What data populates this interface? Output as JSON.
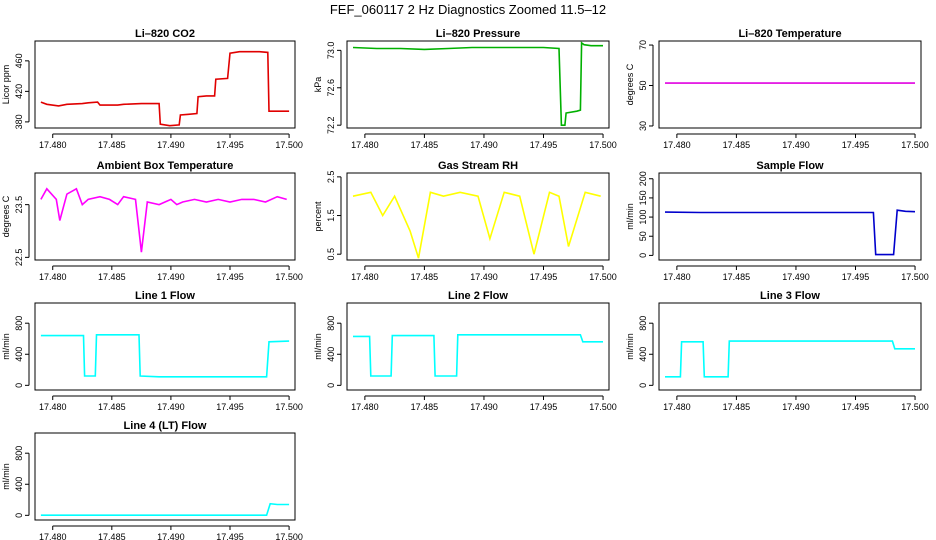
{
  "figure_title": "FEF_060117  2 Hz Diagnostics Zoomed 11.5–12",
  "chart_data": [
    {
      "type": "line",
      "title": "Li–820 CO2",
      "ylabel": "Licor ppm",
      "color": "#e00000",
      "xlim": [
        17.4785,
        17.5005
      ],
      "ylim": [
        372,
        486
      ],
      "xticks": [
        17.48,
        17.485,
        17.49,
        17.495,
        17.5
      ],
      "xtick_labels": [
        "17.480",
        "17.485",
        "17.490",
        "17.495",
        "17.500"
      ],
      "yticks": [
        380,
        420,
        460
      ],
      "ytick_labels": [
        "380",
        "420",
        "460"
      ],
      "x": [
        17.479,
        17.4795,
        17.4805,
        17.4812,
        17.4825,
        17.483,
        17.4838,
        17.484,
        17.4855,
        17.486,
        17.4875,
        17.489,
        17.4891,
        17.4899,
        17.4907,
        17.4908,
        17.4915,
        17.4922,
        17.4923,
        17.493,
        17.4937,
        17.4938,
        17.4948,
        17.495,
        17.4958,
        17.4975,
        17.4982,
        17.4983,
        17.499,
        17.5
      ],
      "y": [
        406,
        403,
        401,
        403,
        404,
        405,
        406,
        402,
        402,
        403,
        404,
        404,
        377,
        375,
        376,
        389,
        390,
        391,
        413,
        414,
        414,
        436,
        437,
        470,
        472,
        472,
        471,
        394,
        394,
        394
      ]
    },
    {
      "type": "line",
      "title": "Li–820 Pressure",
      "ylabel": "kPa",
      "color": "#00b000",
      "xlim": [
        17.4785,
        17.5005
      ],
      "ylim": [
        72.17,
        73.1
      ],
      "xticks": [
        17.48,
        17.485,
        17.49,
        17.495,
        17.5
      ],
      "xtick_labels": [
        "17.480",
        "17.485",
        "17.490",
        "17.495",
        "17.500"
      ],
      "yticks": [
        72.2,
        72.6,
        73.0
      ],
      "ytick_labels": [
        "72.2",
        "72.6",
        "73.0"
      ],
      "x": [
        17.479,
        17.481,
        17.483,
        17.485,
        17.487,
        17.489,
        17.491,
        17.493,
        17.495,
        17.4963,
        17.4965,
        17.4968,
        17.4969,
        17.4978,
        17.4981,
        17.4982,
        17.4984,
        17.499,
        17.5
      ],
      "y": [
        73.03,
        73.02,
        73.02,
        73.01,
        73.02,
        73.03,
        73.03,
        73.03,
        73.03,
        73.02,
        72.2,
        72.2,
        72.33,
        72.35,
        72.36,
        73.08,
        73.06,
        73.05,
        73.05
      ]
    },
    {
      "type": "line",
      "title": "Li–820 Temperature",
      "ylabel": "degrees C",
      "color": "#e000e0",
      "xlim": [
        17.4785,
        17.5005
      ],
      "ylim": [
        29,
        72
      ],
      "xticks": [
        17.48,
        17.485,
        17.49,
        17.495,
        17.5
      ],
      "xtick_labels": [
        "17.480",
        "17.485",
        "17.490",
        "17.495",
        "17.500"
      ],
      "yticks": [
        30,
        50,
        70
      ],
      "ytick_labels": [
        "30",
        "50",
        "70"
      ],
      "x": [
        17.479,
        17.5
      ],
      "y": [
        51.2,
        51.2
      ]
    },
    {
      "type": "line",
      "title": "Ambient Box Temperature",
      "ylabel": "degrees C",
      "color": "#ff00ff",
      "xlim": [
        17.4785,
        17.5005
      ],
      "ylim": [
        22.45,
        24.1
      ],
      "xticks": [
        17.48,
        17.485,
        17.49,
        17.495,
        17.5
      ],
      "xtick_labels": [
        "17.480",
        "17.485",
        "17.490",
        "17.495",
        "17.500"
      ],
      "yticks": [
        22.5,
        23.5
      ],
      "ytick_labels": [
        "22.5",
        "23.5"
      ],
      "x": [
        17.479,
        17.4795,
        17.4803,
        17.4806,
        17.4812,
        17.482,
        17.4825,
        17.483,
        17.484,
        17.4848,
        17.4855,
        17.486,
        17.487,
        17.4875,
        17.488,
        17.489,
        17.4895,
        17.49,
        17.4905,
        17.491,
        17.492,
        17.493,
        17.494,
        17.495,
        17.496,
        17.497,
        17.498,
        17.499,
        17.4998
      ],
      "y": [
        23.6,
        23.8,
        23.6,
        23.2,
        23.7,
        23.8,
        23.5,
        23.6,
        23.65,
        23.6,
        23.5,
        23.65,
        23.6,
        22.6,
        23.55,
        23.5,
        23.55,
        23.6,
        23.5,
        23.55,
        23.6,
        23.55,
        23.6,
        23.55,
        23.6,
        23.6,
        23.55,
        23.65,
        23.6
      ]
    },
    {
      "type": "line",
      "title": "Gas Stream RH",
      "ylabel": "percent",
      "color": "#ffff00",
      "xlim": [
        17.4785,
        17.5005
      ],
      "ylim": [
        0.35,
        2.6
      ],
      "xticks": [
        17.48,
        17.485,
        17.49,
        17.495,
        17.5
      ],
      "xtick_labels": [
        "17.480",
        "17.485",
        "17.490",
        "17.495",
        "17.500"
      ],
      "yticks": [
        0.5,
        1.5,
        2.5
      ],
      "ytick_labels": [
        "0.5",
        "1.5",
        "2.5"
      ],
      "x": [
        17.479,
        17.4805,
        17.4815,
        17.4825,
        17.4838,
        17.4845,
        17.4855,
        17.4866,
        17.488,
        17.4895,
        17.4905,
        17.4917,
        17.493,
        17.4942,
        17.4955,
        17.4963,
        17.4971,
        17.4985,
        17.4998
      ],
      "y": [
        2.0,
        2.1,
        1.5,
        2.0,
        1.1,
        0.4,
        2.1,
        2.0,
        2.1,
        2.0,
        0.9,
        2.1,
        2.0,
        0.5,
        2.1,
        2.0,
        0.7,
        2.1,
        2.0
      ]
    },
    {
      "type": "line",
      "title": "Sample Flow",
      "ylabel": "ml/min",
      "color": "#0000cc",
      "xlim": [
        17.4785,
        17.5005
      ],
      "ylim": [
        -12,
        215
      ],
      "xticks": [
        17.48,
        17.485,
        17.49,
        17.495,
        17.5
      ],
      "xtick_labels": [
        "17.480",
        "17.485",
        "17.490",
        "17.495",
        "17.500"
      ],
      "yticks": [
        0,
        50,
        100,
        150,
        200
      ],
      "ytick_labels": [
        "0",
        "50",
        "100",
        "150",
        "200"
      ],
      "x": [
        17.479,
        17.482,
        17.485,
        17.488,
        17.491,
        17.494,
        17.4965,
        17.4967,
        17.4982,
        17.4985,
        17.4992,
        17.5
      ],
      "y": [
        113,
        112,
        112,
        112,
        112,
        112,
        112,
        2,
        2,
        118,
        115,
        114
      ]
    },
    {
      "type": "line",
      "title": "Line 1 Flow",
      "ylabel": "ml/min",
      "color": "#00ffff",
      "xlim": [
        17.4785,
        17.5005
      ],
      "ylim": [
        -60,
        1060
      ],
      "xticks": [
        17.48,
        17.485,
        17.49,
        17.495,
        17.5
      ],
      "xtick_labels": [
        "17.480",
        "17.485",
        "17.490",
        "17.495",
        "17.500"
      ],
      "yticks": [
        0,
        400,
        800
      ],
      "ytick_labels": [
        "0",
        "400",
        "800"
      ],
      "x": [
        17.479,
        17.4826,
        17.4827,
        17.4836,
        17.4837,
        17.4873,
        17.4874,
        17.489,
        17.495,
        17.4981,
        17.4983,
        17.5
      ],
      "y": [
        640,
        640,
        120,
        120,
        650,
        650,
        120,
        110,
        110,
        110,
        560,
        570
      ]
    },
    {
      "type": "line",
      "title": "Line 2 Flow",
      "ylabel": "ml/min",
      "color": "#00ffff",
      "xlim": [
        17.4785,
        17.5005
      ],
      "ylim": [
        -60,
        1060
      ],
      "xticks": [
        17.48,
        17.485,
        17.49,
        17.495,
        17.5
      ],
      "xtick_labels": [
        "17.480",
        "17.485",
        "17.490",
        "17.495",
        "17.500"
      ],
      "yticks": [
        0,
        400,
        800
      ],
      "ytick_labels": [
        "0",
        "400",
        "800"
      ],
      "x": [
        17.479,
        17.4804,
        17.4805,
        17.4822,
        17.4823,
        17.4858,
        17.4859,
        17.4877,
        17.4878,
        17.4981,
        17.4983,
        17.5
      ],
      "y": [
        630,
        630,
        120,
        120,
        640,
        640,
        120,
        120,
        650,
        650,
        560,
        560
      ]
    },
    {
      "type": "line",
      "title": "Line 3 Flow",
      "ylabel": "ml/min",
      "color": "#00ffff",
      "xlim": [
        17.4785,
        17.5005
      ],
      "ylim": [
        -60,
        1060
      ],
      "xticks": [
        17.48,
        17.485,
        17.49,
        17.495,
        17.5
      ],
      "xtick_labels": [
        "17.480",
        "17.485",
        "17.490",
        "17.495",
        "17.500"
      ],
      "yticks": [
        0,
        400,
        800
      ],
      "ytick_labels": [
        "0",
        "400",
        "800"
      ],
      "x": [
        17.479,
        17.4803,
        17.4804,
        17.4822,
        17.4823,
        17.4843,
        17.4844,
        17.4981,
        17.4983,
        17.5
      ],
      "y": [
        110,
        110,
        560,
        560,
        110,
        110,
        570,
        570,
        470,
        470
      ]
    },
    {
      "type": "line",
      "title": "Line 4 (LT) Flow",
      "ylabel": "ml/min",
      "color": "#00ffff",
      "xlim": [
        17.4785,
        17.5005
      ],
      "ylim": [
        -60,
        1060
      ],
      "xticks": [
        17.48,
        17.485,
        17.49,
        17.495,
        17.5
      ],
      "xtick_labels": [
        "17.480",
        "17.485",
        "17.490",
        "17.495",
        "17.500"
      ],
      "yticks": [
        0,
        400,
        800
      ],
      "ytick_labels": [
        "0",
        "400",
        "800"
      ],
      "x": [
        17.479,
        17.495,
        17.4981,
        17.4984,
        17.499,
        17.5
      ],
      "y": [
        2,
        2,
        2,
        150,
        140,
        140
      ]
    }
  ]
}
